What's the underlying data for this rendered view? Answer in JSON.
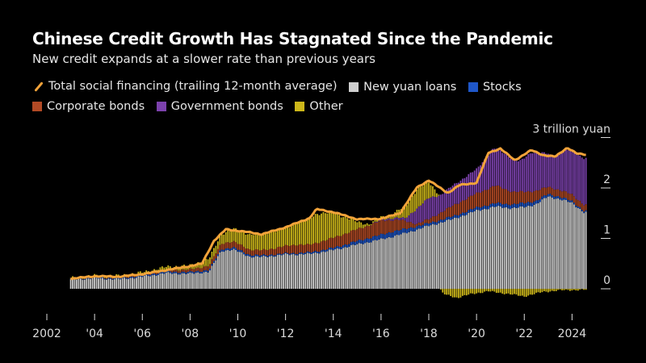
{
  "title": "Chinese Credit Growth Has Stagnated Since the Pandemic",
  "subtitle": "New credit expands at a slower rate than previous years",
  "legend": [
    {
      "label": "Total social financing (trailing 12-month average)",
      "color": "#f2a33a",
      "kind": "line"
    },
    {
      "label": "New yuan loans",
      "color": "#cfcfcf",
      "kind": "box"
    },
    {
      "label": "Stocks",
      "color": "#1f57c9",
      "kind": "box"
    },
    {
      "label": "Corporate bonds",
      "color": "#b24a25",
      "kind": "box"
    },
    {
      "label": "Government bonds",
      "color": "#7c42ad",
      "kind": "box"
    },
    {
      "label": "Other",
      "color": "#cdb71a",
      "kind": "box"
    }
  ],
  "chart_data": {
    "type": "area",
    "x_tick_labels": [
      "2002",
      "'04",
      "'06",
      "'08",
      "'10",
      "'12",
      "'14",
      "'16",
      "'18",
      "'20",
      "'22",
      "2024"
    ],
    "x_tick_years": [
      2002,
      2004,
      2006,
      2008,
      2010,
      2012,
      2014,
      2016,
      2018,
      2020,
      2022,
      2024
    ],
    "y_ticks": [
      0,
      1,
      2,
      3
    ],
    "y_tick_labels": [
      "0",
      "1",
      "2",
      "3 trillion yuan"
    ],
    "ylim": [
      -0.35,
      3.2
    ],
    "xlim": [
      2002,
      2024.9
    ],
    "series_order": [
      "loans",
      "stocks",
      "corp",
      "gov",
      "other"
    ],
    "series_colors": {
      "loans": "#cfcfcf",
      "stocks": "#1f57c9",
      "corp": "#b24a25",
      "gov": "#7c42ad",
      "other": "#cdb71a",
      "tsf": "#f2a33a"
    },
    "keyframes": {
      "loans": [
        [
          2003.0,
          0.18
        ],
        [
          2004.0,
          0.21
        ],
        [
          2005.0,
          0.19
        ],
        [
          2006.0,
          0.24
        ],
        [
          2007.0,
          0.31
        ],
        [
          2008.0,
          0.3
        ],
        [
          2008.8,
          0.34
        ],
        [
          2009.3,
          0.75
        ],
        [
          2009.8,
          0.78
        ],
        [
          2010.5,
          0.64
        ],
        [
          2011.0,
          0.63
        ],
        [
          2012.0,
          0.68
        ],
        [
          2013.0,
          0.69
        ],
        [
          2014.0,
          0.77
        ],
        [
          2015.0,
          0.88
        ],
        [
          2016.0,
          0.98
        ],
        [
          2017.0,
          1.1
        ],
        [
          2018.0,
          1.25
        ],
        [
          2019.0,
          1.38
        ],
        [
          2020.0,
          1.55
        ],
        [
          2020.8,
          1.63
        ],
        [
          2021.5,
          1.6
        ],
        [
          2022.0,
          1.62
        ],
        [
          2022.5,
          1.68
        ],
        [
          2023.0,
          1.83
        ],
        [
          2023.5,
          1.78
        ],
        [
          2024.0,
          1.7
        ],
        [
          2024.5,
          1.52
        ]
      ],
      "stocks": [
        [
          2003.0,
          0.01
        ],
        [
          2007.0,
          0.03
        ],
        [
          2008.0,
          0.03
        ],
        [
          2010.0,
          0.04
        ],
        [
          2012.0,
          0.02
        ],
        [
          2014.0,
          0.04
        ],
        [
          2015.5,
          0.08
        ],
        [
          2016.5,
          0.1
        ],
        [
          2018.0,
          0.05
        ],
        [
          2020.0,
          0.06
        ],
        [
          2021.0,
          0.07
        ],
        [
          2022.0,
          0.08
        ],
        [
          2023.0,
          0.05
        ],
        [
          2024.5,
          0.03
        ]
      ],
      "corp": [
        [
          2003.0,
          0.005
        ],
        [
          2006.0,
          0.02
        ],
        [
          2008.0,
          0.05
        ],
        [
          2009.5,
          0.12
        ],
        [
          2011.0,
          0.1
        ],
        [
          2012.5,
          0.17
        ],
        [
          2013.0,
          0.15
        ],
        [
          2014.0,
          0.2
        ],
        [
          2015.5,
          0.25
        ],
        [
          2016.0,
          0.28
        ],
        [
          2016.8,
          0.2
        ],
        [
          2017.5,
          0.05
        ],
        [
          2018.0,
          0.08
        ],
        [
          2019.0,
          0.21
        ],
        [
          2020.0,
          0.28
        ],
        [
          2020.8,
          0.35
        ],
        [
          2021.5,
          0.25
        ],
        [
          2022.0,
          0.22
        ],
        [
          2022.5,
          0.2
        ],
        [
          2023.0,
          0.14
        ],
        [
          2024.0,
          0.13
        ],
        [
          2024.5,
          0.12
        ]
      ],
      "gov": [
        [
          2003.0,
          0.0
        ],
        [
          2015.5,
          0.0
        ],
        [
          2016.0,
          0.02
        ],
        [
          2017.0,
          0.05
        ],
        [
          2017.5,
          0.3
        ],
        [
          2018.0,
          0.42
        ],
        [
          2018.5,
          0.35
        ],
        [
          2019.0,
          0.4
        ],
        [
          2020.0,
          0.48
        ],
        [
          2020.7,
          0.75
        ],
        [
          2021.2,
          0.7
        ],
        [
          2021.8,
          0.6
        ],
        [
          2022.3,
          0.78
        ],
        [
          2022.8,
          0.7
        ],
        [
          2023.2,
          0.62
        ],
        [
          2023.8,
          0.85
        ],
        [
          2024.5,
          0.92
        ]
      ],
      "other": [
        [
          2003.0,
          0.02
        ],
        [
          2006.0,
          0.04
        ],
        [
          2008.0,
          0.08
        ],
        [
          2009.0,
          0.15
        ],
        [
          2010.0,
          0.27
        ],
        [
          2011.0,
          0.33
        ],
        [
          2012.0,
          0.35
        ],
        [
          2013.3,
          0.58
        ],
        [
          2014.0,
          0.5
        ],
        [
          2015.0,
          0.15
        ],
        [
          2015.5,
          0.02
        ],
        [
          2016.5,
          0.08
        ],
        [
          2017.5,
          0.38
        ],
        [
          2018.0,
          0.32
        ],
        [
          2018.6,
          -0.1
        ],
        [
          2019.2,
          -0.18
        ],
        [
          2019.8,
          -0.1
        ],
        [
          2020.5,
          -0.05
        ],
        [
          2021.3,
          -0.1
        ],
        [
          2022.0,
          -0.15
        ],
        [
          2022.8,
          -0.06
        ],
        [
          2023.5,
          -0.03
        ],
        [
          2024.5,
          -0.02
        ]
      ],
      "tsf": [
        [
          2003.0,
          0.2
        ],
        [
          2004.0,
          0.25
        ],
        [
          2005.0,
          0.24
        ],
        [
          2006.0,
          0.29
        ],
        [
          2007.0,
          0.37
        ],
        [
          2008.0,
          0.45
        ],
        [
          2008.5,
          0.5
        ],
        [
          2009.0,
          0.95
        ],
        [
          2009.5,
          1.18
        ],
        [
          2010.5,
          1.12
        ],
        [
          2011.0,
          1.08
        ],
        [
          2012.0,
          1.22
        ],
        [
          2013.0,
          1.4
        ],
        [
          2013.3,
          1.58
        ],
        [
          2014.0,
          1.52
        ],
        [
          2015.0,
          1.38
        ],
        [
          2016.0,
          1.39
        ],
        [
          2016.8,
          1.5
        ],
        [
          2017.5,
          2.01
        ],
        [
          2018.0,
          2.15
        ],
        [
          2018.8,
          1.9
        ],
        [
          2019.3,
          2.06
        ],
        [
          2020.0,
          2.1
        ],
        [
          2020.5,
          2.7
        ],
        [
          2021.0,
          2.78
        ],
        [
          2021.6,
          2.55
        ],
        [
          2022.3,
          2.75
        ],
        [
          2022.8,
          2.65
        ],
        [
          2023.3,
          2.62
        ],
        [
          2023.8,
          2.8
        ],
        [
          2024.2,
          2.68
        ],
        [
          2024.6,
          2.66
        ]
      ]
    }
  }
}
